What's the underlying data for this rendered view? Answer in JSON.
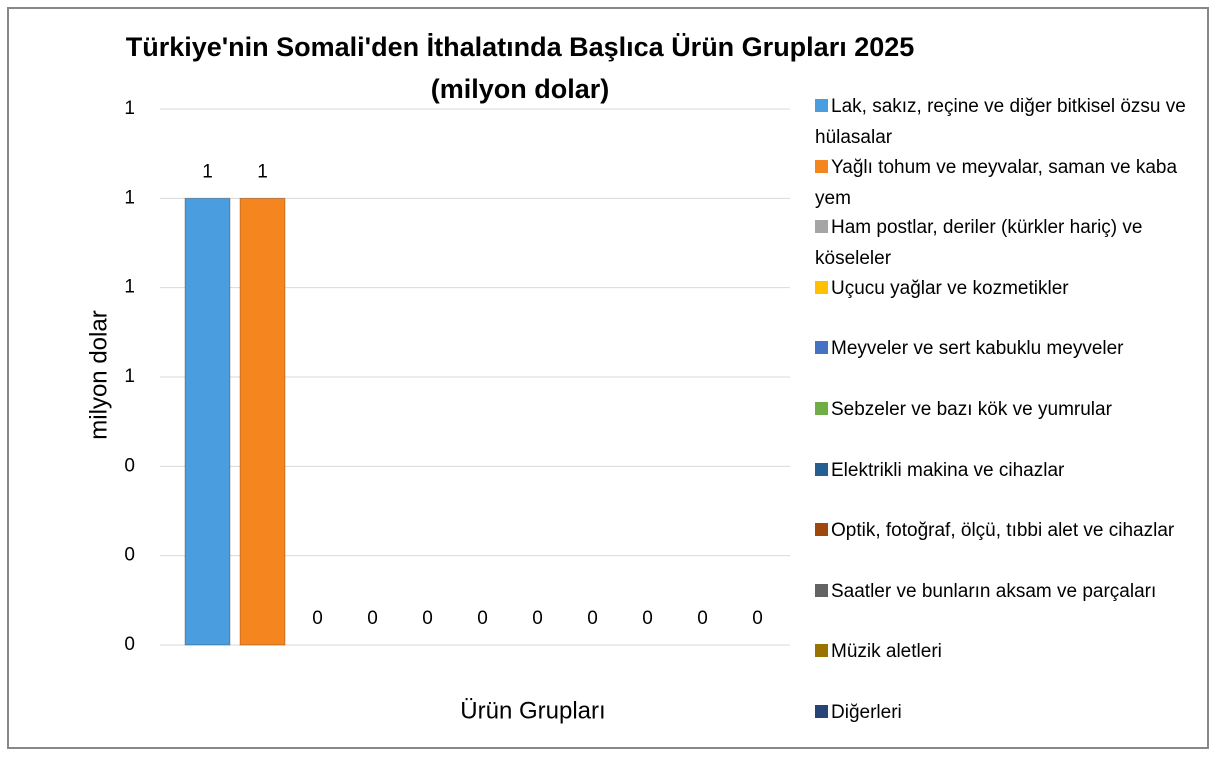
{
  "chart_data": {
    "type": "bar",
    "title": "Türkiye'nin Somali'den İthalatında Başlıca Ürün Grupları 2025\n(milyon dolar)",
    "y_label": "milyon dolar",
    "x_label": "Ürün Grupları",
    "categories": [
      null
    ],
    "series": [
      {
        "name": "Lak, sakız, reçine ve diğer bitkisel özsu ve hülasalar",
        "color": "#4a9ee0",
        "values": [
          1
        ]
      },
      {
        "name": "Yağlı tohum ve meyvalar, saman ve kaba yem",
        "color": "#f5861f",
        "values": [
          1
        ]
      },
      {
        "name": "Ham postlar, deriler (kürkler hariç) ve köseleler",
        "color": "#a5a5a5",
        "values": [
          0
        ]
      },
      {
        "name": "Uçucu yağlar ve kozmetikler",
        "color": "#ffc000",
        "values": [
          0
        ]
      },
      {
        "name": "Meyveler ve sert kabuklu meyveler",
        "color": "#4472c4",
        "values": [
          0
        ]
      },
      {
        "name": "Sebzeler ve bazı kök ve yumrular",
        "color": "#70ad47",
        "values": [
          0
        ]
      },
      {
        "name": "Elektrikli makina ve cihazlar",
        "color": "#255e91",
        "values": [
          0
        ]
      },
      {
        "name": "Optik, fotoğraf, ölçü, tıbbi alet ve cihazlar",
        "color": "#9e480e",
        "values": [
          0
        ]
      },
      {
        "name": "Saatler ve bunların aksam ve parçaları",
        "color": "#636363",
        "values": [
          0
        ]
      },
      {
        "name": "Müzik aletleri",
        "color": "#997300",
        "values": [
          0
        ]
      },
      {
        "name": "Diğerleri",
        "color": "#264478",
        "values": [
          0
        ]
      }
    ],
    "ylim": [
      0,
      1.2
    ],
    "yticks": [
      0,
      {
        "value": 0.2,
        "label": "0"
      },
      {
        "value": 0.4,
        "label": "0"
      },
      {
        "value": 0.6,
        "label": "1"
      },
      {
        "value": 0.8,
        "label": "1"
      },
      1,
      {
        "value": 1.2,
        "label": "1"
      }
    ],
    "grid": true,
    "legend": "right"
  }
}
